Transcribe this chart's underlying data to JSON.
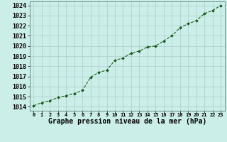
{
  "x": [
    0,
    1,
    2,
    3,
    4,
    5,
    6,
    7,
    8,
    9,
    10,
    11,
    12,
    13,
    14,
    15,
    16,
    17,
    18,
    19,
    20,
    21,
    22,
    23
  ],
  "y": [
    1014.1,
    1014.4,
    1014.6,
    1014.9,
    1015.1,
    1015.3,
    1015.6,
    1016.9,
    1017.4,
    1017.6,
    1018.6,
    1018.8,
    1019.3,
    1019.5,
    1019.9,
    1020.0,
    1020.5,
    1021.0,
    1021.8,
    1022.2,
    1022.5,
    1023.2,
    1023.5,
    1024.0
  ],
  "line_color": "#1a5c1a",
  "marker": "D",
  "marker_size": 2.0,
  "line_width": 0.8,
  "line_style": "--",
  "bg_color": "#cceee8",
  "grid_color": "#aacccc",
  "xlabel": "Graphe pression niveau de la mer (hPa)",
  "xlabel_fontsize": 7,
  "ytick_fontsize": 6,
  "xtick_fontsize": 5,
  "yticks": [
    1014,
    1015,
    1016,
    1017,
    1018,
    1019,
    1020,
    1021,
    1022,
    1023,
    1024
  ],
  "xticks": [
    0,
    1,
    2,
    3,
    4,
    5,
    6,
    7,
    8,
    9,
    10,
    11,
    12,
    13,
    14,
    15,
    16,
    17,
    18,
    19,
    20,
    21,
    22,
    23
  ],
  "ylim": [
    1013.6,
    1024.4
  ],
  "xlim": [
    -0.5,
    23.5
  ]
}
